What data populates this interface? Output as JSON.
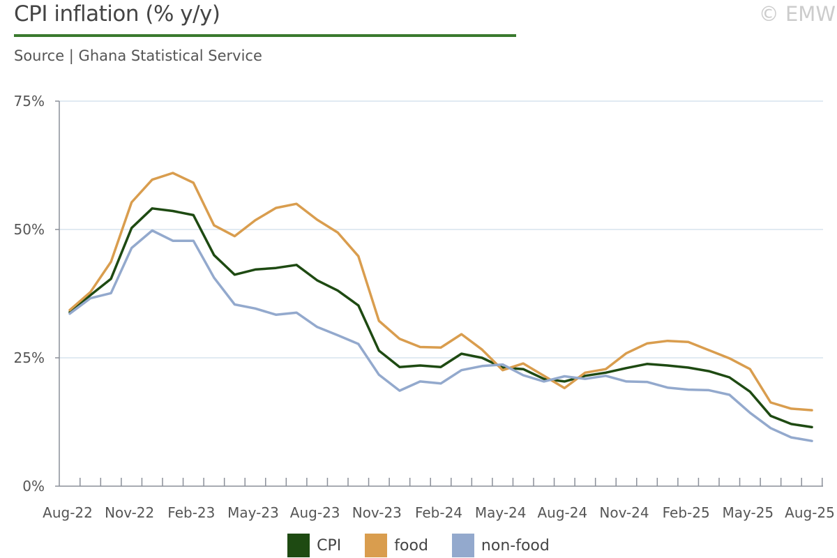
{
  "header": {
    "title": "CPI inflation (% y/y)",
    "subtitle": "Source | Ghana Statistical Service",
    "copyright": "© EMW"
  },
  "colors": {
    "CPI": "#1e4a12",
    "food": "#d99d4e",
    "non-food": "#93a9cd",
    "title_rule": "#3a7a2e"
  },
  "chart_data": {
    "type": "line",
    "title": "CPI inflation (% y/y)",
    "subtitle": "Source | Ghana Statistical Service",
    "ylim": [
      0,
      75
    ],
    "y_ticks": [
      "0%",
      "25%",
      "50%",
      "75%"
    ],
    "y_tick_values": [
      0,
      25,
      50,
      75
    ],
    "grid": true,
    "legend_position": "bottom",
    "x": [
      "Aug-22",
      "Sep-22",
      "Oct-22",
      "Nov-22",
      "Dec-22",
      "Jan-23",
      "Feb-23",
      "Mar-23",
      "Apr-23",
      "May-23",
      "Jun-23",
      "Jul-23",
      "Aug-23",
      "Sep-23",
      "Oct-23",
      "Nov-23",
      "Dec-23",
      "Jan-24",
      "Feb-24",
      "Mar-24",
      "Apr-24",
      "May-24",
      "Jun-24",
      "Jul-24",
      "Aug-24",
      "Sep-24",
      "Oct-24",
      "Nov-24",
      "Dec-24",
      "Jan-25",
      "Feb-25",
      "Mar-25",
      "Apr-25",
      "May-25",
      "Jun-25",
      "Jul-25",
      "Aug-25"
    ],
    "x_tick_labels": [
      "Aug-22",
      "Nov-22",
      "Feb-23",
      "May-23",
      "Aug-23",
      "Nov-23",
      "Feb-24",
      "May-24",
      "Aug-24",
      "Nov-24",
      "Feb-25",
      "May-25",
      "Aug-25"
    ],
    "series": [
      {
        "name": "CPI",
        "color": "#1e4a12",
        "values": [
          33.9,
          37.2,
          40.4,
          50.3,
          54.1,
          53.6,
          52.8,
          45.0,
          41.2,
          42.2,
          42.5,
          43.1,
          40.1,
          38.1,
          35.2,
          26.4,
          23.2,
          23.5,
          23.2,
          25.8,
          25.0,
          23.1,
          22.8,
          20.9,
          20.4,
          21.5,
          22.1,
          23.0,
          23.8,
          23.5,
          23.1,
          22.4,
          21.2,
          18.4,
          13.7,
          12.1,
          11.5
        ]
      },
      {
        "name": "food",
        "color": "#d99d4e",
        "values": [
          34.3,
          37.8,
          43.7,
          55.3,
          59.7,
          61.0,
          59.1,
          50.8,
          48.7,
          51.8,
          54.2,
          55.0,
          51.9,
          49.4,
          44.8,
          32.2,
          28.7,
          27.1,
          27.0,
          29.6,
          26.6,
          22.6,
          23.9,
          21.5,
          19.1,
          22.1,
          22.8,
          25.9,
          27.8,
          28.3,
          28.1,
          26.5,
          24.9,
          22.8,
          16.3,
          15.1,
          14.8
        ]
      },
      {
        "name": "non-food",
        "color": "#93a9cd",
        "values": [
          33.6,
          36.6,
          37.6,
          46.4,
          49.8,
          47.8,
          47.8,
          40.6,
          35.4,
          34.6,
          33.4,
          33.8,
          31.0,
          29.4,
          27.7,
          21.7,
          18.6,
          20.4,
          20.0,
          22.6,
          23.4,
          23.7,
          21.6,
          20.4,
          21.4,
          20.9,
          21.5,
          20.4,
          20.3,
          19.2,
          18.8,
          18.7,
          17.8,
          14.3,
          11.3,
          9.5,
          8.8
        ]
      }
    ]
  },
  "legend": [
    {
      "label": "CPI",
      "color": "#1e4a12"
    },
    {
      "label": "food",
      "color": "#d99d4e"
    },
    {
      "label": "non-food",
      "color": "#93a9cd"
    }
  ]
}
